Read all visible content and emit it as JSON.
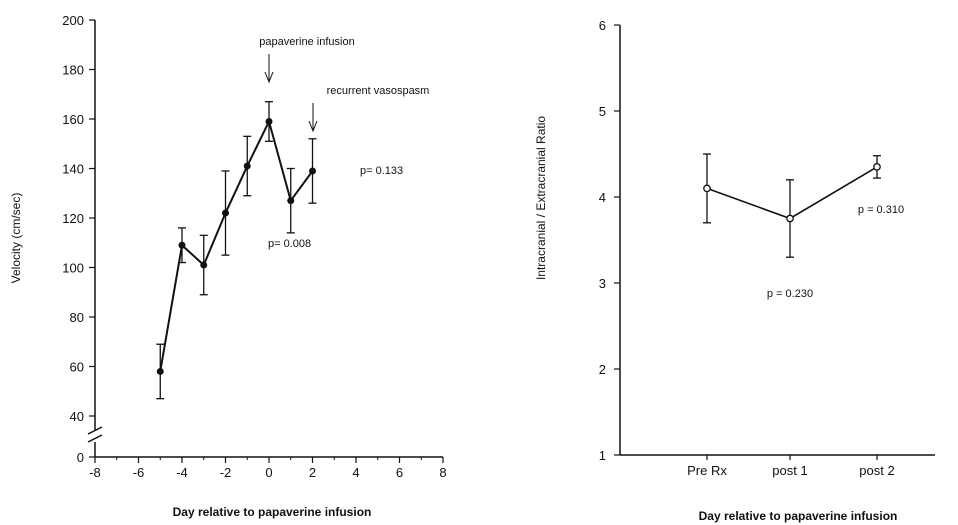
{
  "chart_data": [
    {
      "type": "line",
      "xlabel": "Day relative to papaverine infusion",
      "ylabel": "Velocity (cm/sec)",
      "xlim": [
        -8,
        8
      ],
      "ylim": [
        40,
        200
      ],
      "y_axis_break": true,
      "x_ticks": [
        "-8",
        "-6",
        "-4",
        "-2",
        "0",
        "2",
        "4",
        "6",
        "8"
      ],
      "y_ticks": [
        "0",
        "40",
        "60",
        "80",
        "100",
        "120",
        "140",
        "160",
        "180",
        "200"
      ],
      "marker": "filled-circle",
      "points": [
        {
          "x": -5,
          "y": 58,
          "err": 11
        },
        {
          "x": -4,
          "y": 109,
          "err": 7
        },
        {
          "x": -3,
          "y": 101,
          "err": 12
        },
        {
          "x": -2,
          "y": 122,
          "err": 17
        },
        {
          "x": -1,
          "y": 141,
          "err": 12
        },
        {
          "x": 0,
          "y": 159,
          "err": 8
        },
        {
          "x": 1,
          "y": 127,
          "err": 13
        },
        {
          "x": 2,
          "y": 139,
          "err": 13
        }
      ],
      "annotations": [
        {
          "text": "papaverine infusion",
          "arrow_x": 0
        },
        {
          "text": "recurrent vasospasm",
          "arrow_x": 2
        },
        {
          "text": "p= 0.133"
        },
        {
          "text": "p= 0.008"
        }
      ]
    },
    {
      "type": "line",
      "xlabel": "Day relative to papaverine infusion",
      "ylabel": "Intracranial / Extracranial Ratio",
      "ylim": [
        1,
        6
      ],
      "categories": [
        "Pre Rx",
        "post 1",
        "post 2"
      ],
      "y_ticks": [
        "1",
        "2",
        "3",
        "4",
        "5",
        "6"
      ],
      "marker": "open-circle",
      "values": [
        4.1,
        3.75,
        4.35
      ],
      "errors": [
        0.4,
        0.45,
        0.13
      ],
      "annotations": [
        {
          "text": "p = 0.310"
        },
        {
          "text": "p = 0.230"
        }
      ]
    }
  ]
}
